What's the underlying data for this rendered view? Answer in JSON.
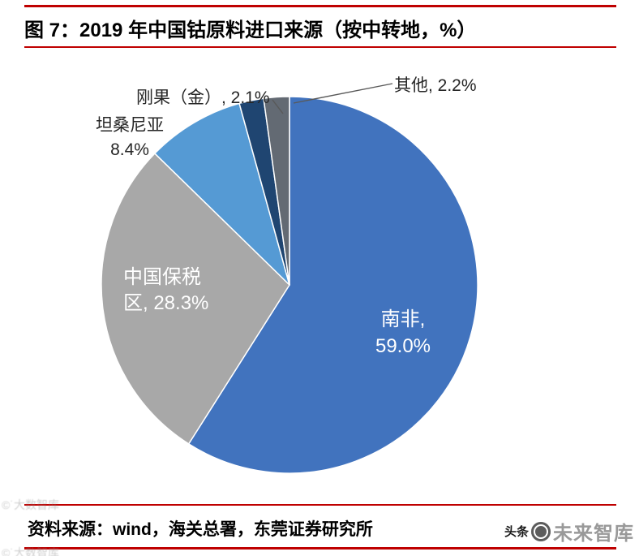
{
  "header": {
    "title": "图 7：2019 年中国钴原料进口来源（按中转地，%）"
  },
  "accent_color": "#BF0000",
  "chart_data": {
    "type": "pie",
    "title": "2019 年中国钴原料进口来源（按中转地，%）",
    "unit": "%",
    "direction": "clockwise",
    "start_angle": "top",
    "legend": "none",
    "slices": [
      {
        "name": "南非",
        "value": 59.0,
        "color": "#4173BE",
        "label_placement": "inside",
        "label_lines": [
          "南非,",
          "59.0%"
        ]
      },
      {
        "name": "中国保税区",
        "value": 28.3,
        "color": "#A8A8A8",
        "label_placement": "inside",
        "label_lines": [
          "中国保税",
          "区, 28.3%"
        ]
      },
      {
        "name": "坦桑尼亚",
        "value": 8.4,
        "color": "#559AD4",
        "label_placement": "outside",
        "label_lines": [
          "坦桑尼亚",
          "8.4%"
        ]
      },
      {
        "name": "刚果（金）",
        "value": 2.1,
        "color": "#1F4571",
        "label_placement": "outside",
        "label_lines": [
          "刚果（金）, 2.1%"
        ]
      },
      {
        "name": "其他",
        "value": 2.2,
        "color": "#636A73",
        "label_placement": "outside",
        "label_lines": [
          "其他, 2.2%"
        ]
      }
    ]
  },
  "footer": {
    "source": "资料来源：wind，海关总署，东莞证券研究所"
  },
  "watermarks": {
    "right_prefix": "头条",
    "right_name": "未来智库",
    "left_line1": "©˙大数智库",
    "left_line2": "©˙大数智库"
  }
}
